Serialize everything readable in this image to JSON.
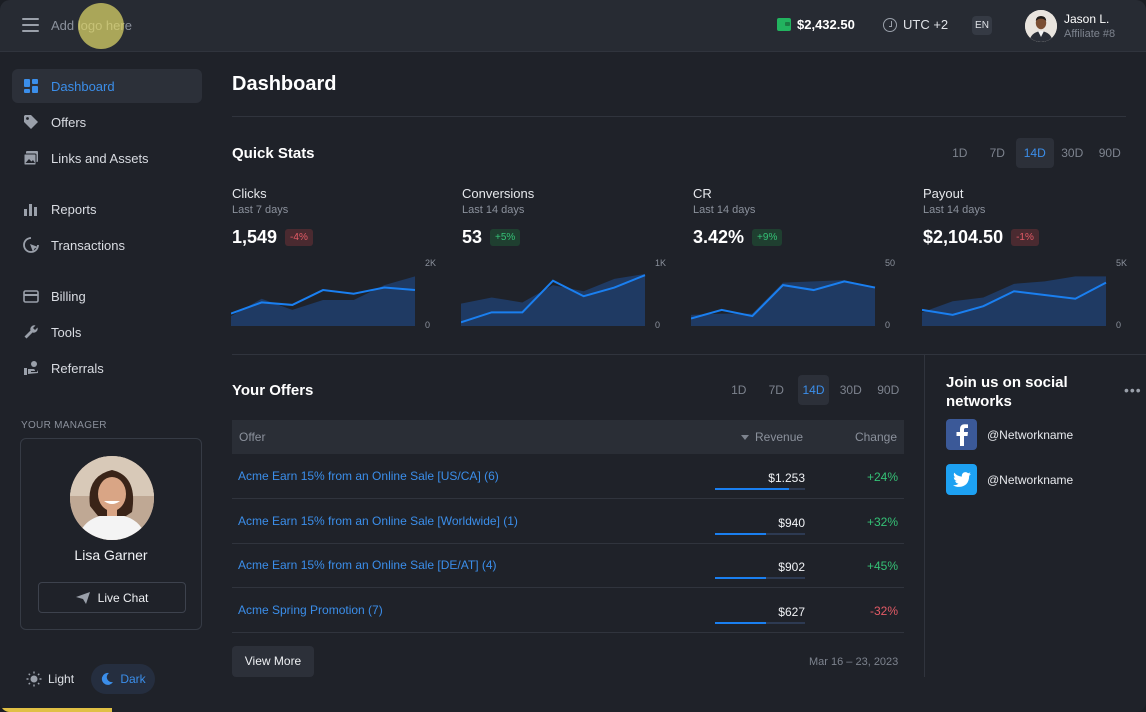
{
  "header": {
    "logo_text": "Add logo here",
    "balance": "$2,432.50",
    "timezone": "UTC +2",
    "language": "EN",
    "user_name": "Jason L.",
    "user_role": "Affiliate #8"
  },
  "sidebar": {
    "items": [
      {
        "label": "Dashboard",
        "icon": "dashboard-icon",
        "active": true
      },
      {
        "label": "Offers",
        "icon": "tag-icon"
      },
      {
        "label": "Links and Assets",
        "icon": "images-icon"
      },
      {
        "label": "Reports",
        "icon": "bar-chart-icon"
      },
      {
        "label": "Transactions",
        "icon": "cursor-click-icon"
      },
      {
        "label": "Billing",
        "icon": "credit-card-icon"
      },
      {
        "label": "Tools",
        "icon": "wrench-icon"
      },
      {
        "label": "Referrals",
        "icon": "referral-icon"
      }
    ],
    "manager_label": "YOUR MANAGER",
    "manager_name": "Lisa Garner",
    "chat_label": "Live Chat",
    "theme_light": "Light",
    "theme_dark": "Dark",
    "theme_selected": "Dark"
  },
  "main": {
    "title": "Dashboard",
    "quick_stats_title": "Quick Stats",
    "periods": [
      "1D",
      "7D",
      "14D",
      "30D",
      "90D"
    ],
    "selected_period": "14D",
    "stats": [
      {
        "title": "Clicks",
        "subtitle": "Last 7 days",
        "value": "1,549",
        "change": "-4%",
        "trend": "neg",
        "axis_max": "2K",
        "axis_min": "0",
        "area": [
          0.16,
          0.44,
          0.26,
          0.42,
          0.42,
          0.66,
          0.8
        ],
        "line": [
          0.2,
          0.38,
          0.34,
          0.58,
          0.52,
          0.62,
          0.58
        ]
      },
      {
        "title": "Conversions",
        "subtitle": "Last 14 days",
        "value": "53",
        "change": "+5%",
        "trend": "pos",
        "axis_max": "1K",
        "axis_min": "0",
        "area": [
          0.36,
          0.46,
          0.38,
          0.66,
          0.56,
          0.76,
          0.84
        ],
        "line": [
          0.06,
          0.22,
          0.22,
          0.73,
          0.48,
          0.62,
          0.82
        ]
      },
      {
        "title": "CR",
        "subtitle": "Last 14 days",
        "value": "3.42%",
        "change": "+9%",
        "trend": "pos",
        "axis_max": "50",
        "axis_min": "0",
        "area": [
          0.18,
          0.2,
          0.2,
          0.7,
          0.72,
          0.74,
          0.62
        ],
        "line": [
          0.12,
          0.26,
          0.16,
          0.66,
          0.58,
          0.72,
          0.62
        ]
      },
      {
        "title": "Payout",
        "subtitle": "Last 14 days",
        "value": "$2,104.50",
        "change": "-1%",
        "trend": "neg",
        "axis_max": "5K",
        "axis_min": "0",
        "area": [
          0.22,
          0.4,
          0.46,
          0.68,
          0.72,
          0.8,
          0.8
        ],
        "line": [
          0.26,
          0.18,
          0.32,
          0.56,
          0.5,
          0.44,
          0.7
        ]
      }
    ],
    "offers_title": "Your Offers",
    "offers_periods": [
      "1D",
      "7D",
      "14D",
      "30D",
      "90D"
    ],
    "offers_selected_period": "14D",
    "table": {
      "col_offer": "Offer",
      "col_revenue": "Revenue",
      "col_change": "Change",
      "rows": [
        {
          "offer": "Acme Earn 15% from an Online Sale [US/CA] (6)",
          "revenue": "$1.253",
          "revenue_share": 0.82,
          "change": "+24%",
          "trend": "pos"
        },
        {
          "offer": "Acme Earn 15% from an Online Sale [Worldwide] (1)",
          "revenue": "$940",
          "revenue_share": 0.57,
          "change": "+32%",
          "trend": "pos"
        },
        {
          "offer": "Acme Earn 15% from an Online Sale [DE/AT] (4)",
          "revenue": "$902",
          "revenue_share": 0.57,
          "change": "+45%",
          "trend": "pos"
        },
        {
          "offer": "Acme Spring Promotion (7)",
          "revenue": "$627",
          "revenue_share": 0.57,
          "change": "-32%",
          "trend": "neg"
        }
      ]
    },
    "view_more": "View More",
    "date_range": "Mar 16 – 23, 2023"
  },
  "social": {
    "title": "Join us on social networks",
    "items": [
      {
        "network": "facebook-icon",
        "handle": "@Networkname",
        "color": "#3b5998"
      },
      {
        "network": "twitter-icon",
        "handle": "@Networkname",
        "color": "#1da1f2"
      }
    ]
  },
  "colors": {
    "accent": "#3b8eea",
    "positive": "#35c176",
    "negative": "#e35b66",
    "chart_area": "#1f3a63",
    "chart_line": "#1a7ff0"
  }
}
